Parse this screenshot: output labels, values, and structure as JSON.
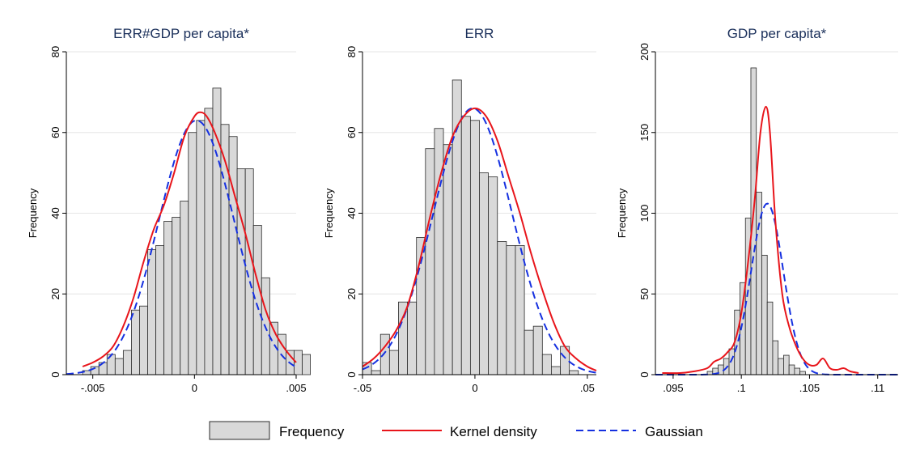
{
  "legend": {
    "frequency_label": "Frequency",
    "kde_label": "Kernel density",
    "gauss_label": "Gaussian"
  },
  "colors": {
    "bar_fill": "#d9d9d9",
    "kde": "#e8151b",
    "gaussian": "#1530e0",
    "title": "#1a2f5a"
  },
  "chart_data": [
    {
      "type": "bar",
      "title": "ERR#GDP per capita*",
      "ylabel": "Frequency",
      "xlabel": "",
      "xlim": [
        -0.0063,
        0.005
      ],
      "ylim": [
        0,
        80
      ],
      "xticks": [
        -0.005,
        0,
        0.005
      ],
      "xtick_labels": [
        "-.005",
        "0",
        ".005"
      ],
      "yticks": [
        0,
        20,
        40,
        60,
        80
      ],
      "grid": true,
      "bin_start": -0.0055,
      "bin_width": 0.0004,
      "frequencies": [
        1,
        2,
        3,
        5,
        4,
        6,
        16,
        17,
        31,
        32,
        38,
        39,
        43,
        60,
        63,
        66,
        71,
        62,
        59,
        51,
        51,
        37,
        24,
        13,
        10,
        6,
        6,
        5
      ],
      "kde": {
        "x": [
          -0.0055,
          -0.005,
          -0.0045,
          -0.004,
          -0.0035,
          -0.003,
          -0.0025,
          -0.002,
          -0.0015,
          -0.001,
          -0.0005,
          0,
          0.0003,
          0.0006,
          0.001,
          0.0015,
          0.002,
          0.0025,
          0.003,
          0.0035,
          0.004,
          0.0045,
          0.005
        ],
        "y": [
          2,
          3,
          4.5,
          7,
          12,
          19,
          28,
          36,
          42,
          50,
          59,
          64,
          65,
          64,
          60,
          53,
          44,
          35,
          25,
          16,
          10,
          6,
          3
        ]
      },
      "gaussian": {
        "mean": 0.0001,
        "sd": 0.00185,
        "peak": 63
      }
    },
    {
      "type": "bar",
      "title": "ERR",
      "ylabel": "Frequency",
      "xlabel": "",
      "xlim": [
        -0.05,
        0.054
      ],
      "ylim": [
        0,
        80
      ],
      "xticks": [
        -0.05,
        0,
        0.05
      ],
      "xtick_labels": [
        "-.05",
        "0",
        ".05"
      ],
      "yticks": [
        0,
        20,
        40,
        60,
        80
      ],
      "grid": true,
      "bin_start": -0.05,
      "bin_width": 0.004,
      "frequencies": [
        3,
        1,
        10,
        6,
        18,
        18,
        34,
        56,
        61,
        57,
        73,
        64,
        63,
        50,
        49,
        33,
        32,
        32,
        11,
        12,
        5,
        2,
        7,
        1
      ],
      "kde": {
        "x": [
          -0.05,
          -0.045,
          -0.04,
          -0.035,
          -0.03,
          -0.025,
          -0.02,
          -0.015,
          -0.01,
          -0.005,
          0,
          0.005,
          0.01,
          0.015,
          0.02,
          0.025,
          0.03,
          0.035,
          0.04,
          0.045,
          0.05,
          0.054
        ],
        "y": [
          2,
          4,
          7,
          11,
          17,
          27,
          39,
          50,
          59,
          64,
          66,
          64,
          58,
          49,
          40,
          30,
          21,
          13,
          7,
          4,
          2,
          1
        ]
      },
      "gaussian": {
        "mean": -0.001,
        "sd": 0.0175,
        "peak": 66
      }
    },
    {
      "type": "bar",
      "title": "GDP per capita*",
      "ylabel": "Frequency",
      "xlabel": "",
      "xlim": [
        0.0937,
        0.1115
      ],
      "ylim": [
        0,
        200
      ],
      "xticks": [
        0.095,
        0.1,
        0.105,
        0.11
      ],
      "xtick_labels": [
        ".095",
        ".1",
        ".105",
        ".11"
      ],
      "yticks": [
        0,
        50,
        100,
        150,
        200
      ],
      "grid": true,
      "bin_start": 0.0975,
      "bin_width": 0.0004,
      "frequencies": [
        2,
        4,
        6,
        10,
        16,
        40,
        57,
        97,
        190,
        113,
        74,
        45,
        21,
        10,
        12,
        6,
        4,
        2
      ],
      "kde": {
        "x": [
          0.0942,
          0.0955,
          0.0965,
          0.0975,
          0.098,
          0.0985,
          0.099,
          0.0995,
          0.1,
          0.1005,
          0.101,
          0.1014,
          0.1018,
          0.1021,
          0.1025,
          0.103,
          0.1035,
          0.104,
          0.1045,
          0.105,
          0.1055,
          0.106,
          0.1065,
          0.107,
          0.1075,
          0.108,
          0.1086
        ],
        "y": [
          1,
          1,
          2,
          4,
          8,
          10,
          14,
          20,
          38,
          70,
          110,
          150,
          166,
          150,
          95,
          50,
          30,
          18,
          10,
          6,
          6,
          10,
          4,
          3,
          4,
          2,
          1
        ]
      },
      "gaussian": {
        "mean": 0.1019,
        "sd": 0.00118,
        "peak": 106
      }
    }
  ]
}
